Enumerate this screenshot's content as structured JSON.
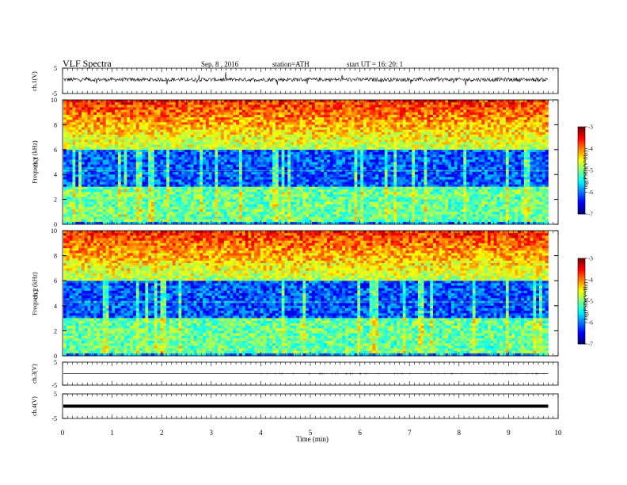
{
  "header": {
    "title": "VLF  Spectra",
    "date": "Sep. 8 , 2016",
    "station": "station=ATH",
    "start_ut": "start  UT  =    16: 20: 1"
  },
  "chart_data": [
    {
      "type": "line",
      "panel": "channel-1-waveform",
      "ylabel": "ch.1(V)",
      "yticks": [
        "5",
        "-5"
      ],
      "ylim": [
        -5,
        5
      ],
      "description_values": {
        "mean": 0.5,
        "noise_amplitude": 1.5
      }
    },
    {
      "type": "heatmap",
      "panel": "channel-1-spectrogram",
      "ylabel_line1": "ch.1",
      "ylabel_line2": "Frequency  (kHz)",
      "yticks": [
        "10",
        "8",
        "6",
        "4",
        "2",
        "0"
      ],
      "ylim": [
        0,
        10
      ],
      "colorbar": {
        "label": "log(PSD)(V²/Hz)",
        "ticks": [
          "-3",
          "-4",
          "-5",
          "-6",
          "-7"
        ],
        "range": [
          -7,
          -3
        ]
      }
    },
    {
      "type": "heatmap",
      "panel": "channel-2-spectrogram",
      "ylabel_line1": "ch.2",
      "ylabel_line2": "Frequency  (kHz)",
      "yticks": [
        "10",
        "8",
        "6",
        "4",
        "2",
        "0"
      ],
      "ylim": [
        0,
        10
      ],
      "colorbar": {
        "label": "log(PSD)(V²/Hz)",
        "ticks": [
          "-3",
          "-4",
          "-5",
          "-6",
          "-7"
        ],
        "range": [
          -7,
          -3
        ]
      }
    },
    {
      "type": "line",
      "panel": "channel-3-waveform",
      "ylabel": "ch.3(V)",
      "yticks": [
        "5",
        "-5"
      ],
      "ylim": [
        -5,
        5
      ],
      "description_values": {
        "level": 0
      }
    },
    {
      "type": "line",
      "panel": "channel-4-waveform",
      "ylabel": "ch.4(V)",
      "yticks": [
        "5",
        "-5"
      ],
      "ylim": [
        -5,
        5
      ],
      "description_values": {
        "level": 0
      }
    }
  ],
  "xaxis": {
    "label": "Time  (min)",
    "ticks": [
      "0",
      "1",
      "2",
      "3",
      "4",
      "5",
      "6",
      "7",
      "8",
      "9",
      "10"
    ],
    "range": [
      0,
      10
    ],
    "data_end": 9.8
  }
}
